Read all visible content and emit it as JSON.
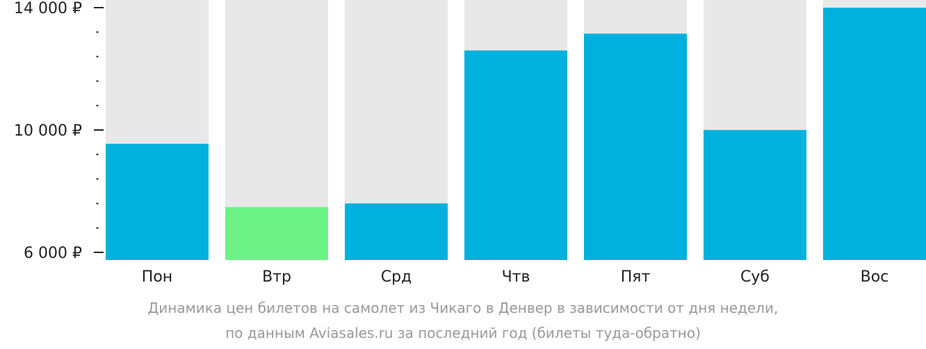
{
  "chart_data": {
    "type": "bar",
    "categories": [
      "Пон",
      "Втр",
      "Срд",
      "Чтв",
      "Пят",
      "Суб",
      "Вос"
    ],
    "values": [
      9550,
      7480,
      7600,
      12600,
      13150,
      10000,
      14000
    ],
    "highlight_index": 1,
    "ylim": [
      6000,
      14000
    ],
    "yticks": [
      6000,
      10000,
      14000
    ],
    "ytick_labels": [
      "6 000 ₽",
      "10 000 ₽",
      "14 000 ₽"
    ],
    "minor_tick_step": 800,
    "grid": false,
    "colors": {
      "bar": "#00b1dd",
      "highlight": "#6cf285",
      "background_track": "#e8e8e8",
      "axis": "#222222",
      "caption": "#999999"
    }
  },
  "caption": {
    "line1": "Динамика цен билетов на самолет из Чикаго в Денвер в зависимости от дня недели,",
    "line2": "по данным Aviasales.ru за последний год (билеты туда-обратно)"
  }
}
